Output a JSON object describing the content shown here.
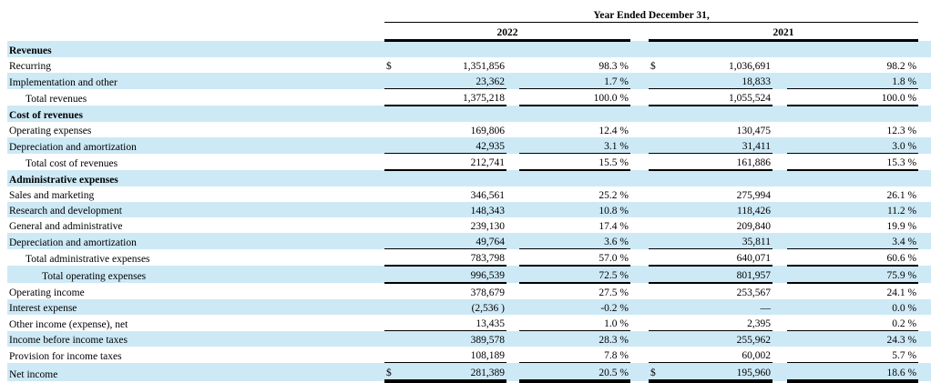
{
  "colors": {
    "row_shade": "#cde9f6",
    "rule": "#000000",
    "text": "#000000"
  },
  "table": {
    "title": "Year Ended December 31,",
    "years": [
      "2022",
      "2021"
    ],
    "rows": [
      {
        "label": "Revenues",
        "type": "section",
        "shaded": true,
        "indent": 0,
        "underline": "none",
        "y2022": {
          "dollar": "",
          "amount": "",
          "pct": ""
        },
        "y2021": {
          "dollar": "",
          "amount": "",
          "pct": ""
        }
      },
      {
        "label": "Recurring",
        "type": "data",
        "shaded": false,
        "indent": 0,
        "underline": "none",
        "y2022": {
          "dollar": "$",
          "amount": "1,351,856",
          "pct": "98.3 %"
        },
        "y2021": {
          "dollar": "$",
          "amount": "1,036,691",
          "pct": "98.2 %"
        }
      },
      {
        "label": "Implementation and other",
        "type": "data",
        "shaded": true,
        "indent": 0,
        "underline": "thin",
        "y2022": {
          "dollar": "",
          "amount": "23,362",
          "pct": "1.7 %"
        },
        "y2021": {
          "dollar": "",
          "amount": "18,833",
          "pct": "1.8 %"
        }
      },
      {
        "label": "Total revenues",
        "type": "data",
        "shaded": false,
        "indent": 1,
        "underline": "total",
        "y2022": {
          "dollar": "",
          "amount": "1,375,218",
          "pct": "100.0 %"
        },
        "y2021": {
          "dollar": "",
          "amount": "1,055,524",
          "pct": "100.0 %"
        }
      },
      {
        "label": "Cost of revenues",
        "type": "section",
        "shaded": true,
        "indent": 0,
        "underline": "none",
        "y2022": {
          "dollar": "",
          "amount": "",
          "pct": ""
        },
        "y2021": {
          "dollar": "",
          "amount": "",
          "pct": ""
        }
      },
      {
        "label": "Operating expenses",
        "type": "data",
        "shaded": false,
        "indent": 0,
        "underline": "none",
        "y2022": {
          "dollar": "",
          "amount": "169,806",
          "pct": "12.4 %"
        },
        "y2021": {
          "dollar": "",
          "amount": "130,475",
          "pct": "12.3 %"
        }
      },
      {
        "label": "Depreciation and amortization",
        "type": "data",
        "shaded": true,
        "indent": 0,
        "underline": "thin",
        "y2022": {
          "dollar": "",
          "amount": "42,935",
          "pct": "3.1 %"
        },
        "y2021": {
          "dollar": "",
          "amount": "31,411",
          "pct": "3.0 %"
        }
      },
      {
        "label": "Total cost of revenues",
        "type": "data",
        "shaded": false,
        "indent": 1,
        "underline": "total",
        "y2022": {
          "dollar": "",
          "amount": "212,741",
          "pct": "15.5 %"
        },
        "y2021": {
          "dollar": "",
          "amount": "161,886",
          "pct": "15.3 %"
        }
      },
      {
        "label": "Administrative expenses",
        "type": "section",
        "shaded": true,
        "indent": 0,
        "underline": "none",
        "y2022": {
          "dollar": "",
          "amount": "",
          "pct": ""
        },
        "y2021": {
          "dollar": "",
          "amount": "",
          "pct": ""
        }
      },
      {
        "label": "Sales and marketing",
        "type": "data",
        "shaded": false,
        "indent": 0,
        "underline": "none",
        "y2022": {
          "dollar": "",
          "amount": "346,561",
          "pct": "25.2 %"
        },
        "y2021": {
          "dollar": "",
          "amount": "275,994",
          "pct": "26.1 %"
        }
      },
      {
        "label": "Research and development",
        "type": "data",
        "shaded": true,
        "indent": 0,
        "underline": "none",
        "y2022": {
          "dollar": "",
          "amount": "148,343",
          "pct": "10.8 %"
        },
        "y2021": {
          "dollar": "",
          "amount": "118,426",
          "pct": "11.2 %"
        }
      },
      {
        "label": "General and administrative",
        "type": "data",
        "shaded": false,
        "indent": 0,
        "underline": "none",
        "y2022": {
          "dollar": "",
          "amount": "239,130",
          "pct": "17.4 %"
        },
        "y2021": {
          "dollar": "",
          "amount": "209,840",
          "pct": "19.9 %"
        }
      },
      {
        "label": "Depreciation and amortization",
        "type": "data",
        "shaded": true,
        "indent": 0,
        "underline": "thin",
        "y2022": {
          "dollar": "",
          "amount": "49,764",
          "pct": "3.6 %"
        },
        "y2021": {
          "dollar": "",
          "amount": "35,811",
          "pct": "3.4 %"
        }
      },
      {
        "label": "Total administrative expenses",
        "type": "data",
        "shaded": false,
        "indent": 1,
        "underline": "total",
        "y2022": {
          "dollar": "",
          "amount": "783,798",
          "pct": "57.0 %"
        },
        "y2021": {
          "dollar": "",
          "amount": "640,071",
          "pct": "60.6 %"
        }
      },
      {
        "label": "Total operating expenses",
        "type": "data",
        "shaded": true,
        "indent": 2,
        "underline": "total",
        "y2022": {
          "dollar": "",
          "amount": "996,539",
          "pct": "72.5 %"
        },
        "y2021": {
          "dollar": "",
          "amount": "801,957",
          "pct": "75.9 %"
        }
      },
      {
        "label": "Operating income",
        "type": "data",
        "shaded": false,
        "indent": 0,
        "underline": "none",
        "y2022": {
          "dollar": "",
          "amount": "378,679",
          "pct": "27.5 %"
        },
        "y2021": {
          "dollar": "",
          "amount": "253,567",
          "pct": "24.1 %"
        }
      },
      {
        "label": "Interest expense",
        "type": "data",
        "shaded": true,
        "indent": 0,
        "underline": "none",
        "y2022": {
          "dollar": "",
          "amount": "(2,536 )",
          "pct": "-0.2 %"
        },
        "y2021": {
          "dollar": "",
          "amount": "—",
          "pct": "0.0 %"
        }
      },
      {
        "label": "Other income (expense), net",
        "type": "data",
        "shaded": false,
        "indent": 0,
        "underline": "thin",
        "y2022": {
          "dollar": "",
          "amount": "13,435",
          "pct": "1.0 %"
        },
        "y2021": {
          "dollar": "",
          "amount": "2,395",
          "pct": "0.2 %"
        }
      },
      {
        "label": "Income before income taxes",
        "type": "data",
        "shaded": true,
        "indent": 0,
        "underline": "none",
        "y2022": {
          "dollar": "",
          "amount": "389,578",
          "pct": "28.3 %"
        },
        "y2021": {
          "dollar": "",
          "amount": "255,962",
          "pct": "24.3 %"
        }
      },
      {
        "label": "Provision for income taxes",
        "type": "data",
        "shaded": false,
        "indent": 0,
        "underline": "thin",
        "y2022": {
          "dollar": "",
          "amount": "108,189",
          "pct": "7.8 %"
        },
        "y2021": {
          "dollar": "",
          "amount": "60,002",
          "pct": "5.7 %"
        }
      },
      {
        "label": "Net income",
        "type": "data",
        "shaded": true,
        "indent": 0,
        "underline": "final",
        "y2022": {
          "dollar": "$",
          "amount": "281,389",
          "pct": "20.5 %"
        },
        "y2021": {
          "dollar": "$",
          "amount": "195,960",
          "pct": "18.6 %"
        }
      }
    ]
  }
}
